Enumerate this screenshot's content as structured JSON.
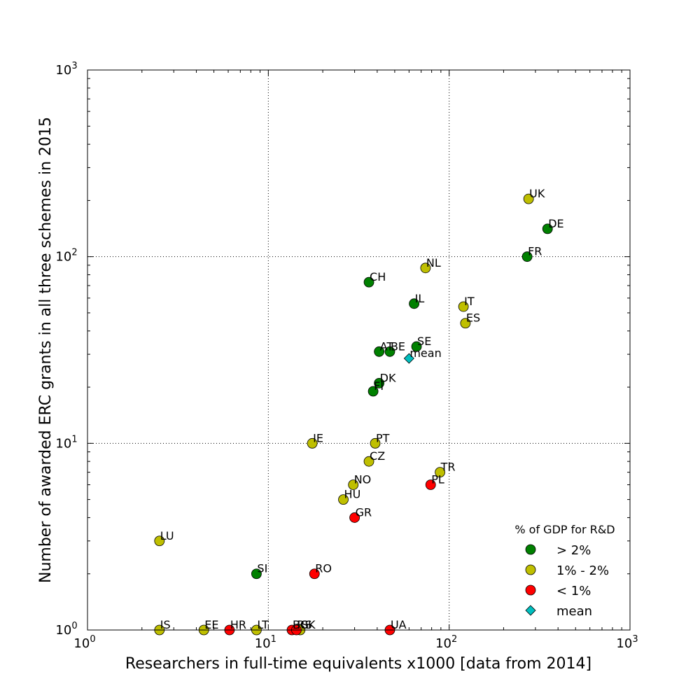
{
  "chart_data": {
    "type": "scatter",
    "xlabel": "Researchers in full-time equivalents x1000 [data from 2014]",
    "ylabel": "Number of awarded ERC grants in all three schemes in 2015",
    "x_scale": "log",
    "y_scale": "log",
    "xlim": [
      1,
      1000
    ],
    "ylim": [
      1,
      1000
    ],
    "x_ticks": [
      {
        "base": "10",
        "exp": "0"
      },
      {
        "base": "10",
        "exp": "1"
      },
      {
        "base": "10",
        "exp": "2"
      },
      {
        "base": "10",
        "exp": "3"
      }
    ],
    "y_ticks": [
      {
        "base": "10",
        "exp": "0"
      },
      {
        "base": "10",
        "exp": "1"
      },
      {
        "base": "10",
        "exp": "2"
      },
      {
        "base": "10",
        "exp": "3"
      }
    ],
    "grid": "major, dotted",
    "legend": {
      "title": "% of GDP for R&D",
      "placement": "bottom-right",
      "entries": [
        {
          "label": "> 2%",
          "marker": "circle",
          "color": "#008000"
        },
        {
          "label": "1% - 2%",
          "marker": "circle",
          "color": "#bfbf00"
        },
        {
          "label": "< 1%",
          "marker": "circle",
          "color": "#ff0000"
        },
        {
          "label": "mean",
          "marker": "diamond",
          "color": "#00bfbf"
        }
      ]
    },
    "series": [
      {
        "name": "> 2%",
        "color": "#008000",
        "marker": "circle",
        "points": [
          {
            "label": "DE",
            "x": 350,
            "y": 141
          },
          {
            "label": "FR",
            "x": 270,
            "y": 100
          },
          {
            "label": "CH",
            "x": 36,
            "y": 73
          },
          {
            "label": "IL",
            "x": 64,
            "y": 56
          },
          {
            "label": "SE",
            "x": 66,
            "y": 33
          },
          {
            "label": "AT",
            "x": 41,
            "y": 31
          },
          {
            "label": "BE",
            "x": 47,
            "y": 31
          },
          {
            "label": "DK",
            "x": 41,
            "y": 21
          },
          {
            "label": "FI",
            "x": 38,
            "y": 19
          },
          {
            "label": "SI",
            "x": 8.6,
            "y": 2
          }
        ]
      },
      {
        "name": "1% - 2%",
        "color": "#bfbf00",
        "marker": "circle",
        "points": [
          {
            "label": "UK",
            "x": 275,
            "y": 204
          },
          {
            "label": "NL",
            "x": 74,
            "y": 87
          },
          {
            "label": "IT",
            "x": 120,
            "y": 54
          },
          {
            "label": "ES",
            "x": 123,
            "y": 44
          },
          {
            "label": "IE",
            "x": 17.5,
            "y": 10
          },
          {
            "label": "PT",
            "x": 39,
            "y": 10
          },
          {
            "label": "CZ",
            "x": 36,
            "y": 8
          },
          {
            "label": "TR",
            "x": 89,
            "y": 7
          },
          {
            "label": "NO",
            "x": 29.5,
            "y": 6
          },
          {
            "label": "HU",
            "x": 26,
            "y": 5
          },
          {
            "label": "LU",
            "x": 2.5,
            "y": 3
          },
          {
            "label": "IS",
            "x": 2.5,
            "y": 1
          },
          {
            "label": "EE",
            "x": 4.4,
            "y": 1
          },
          {
            "label": "LT",
            "x": 8.6,
            "y": 1
          },
          {
            "label": "SK",
            "x": 15,
            "y": 1
          }
        ]
      },
      {
        "name": "< 1%",
        "color": "#ff0000",
        "marker": "circle",
        "points": [
          {
            "label": "PL",
            "x": 79,
            "y": 6
          },
          {
            "label": "GR",
            "x": 30,
            "y": 4
          },
          {
            "label": "RO",
            "x": 18,
            "y": 2
          },
          {
            "label": "HR",
            "x": 6.1,
            "y": 1
          },
          {
            "label": "BG",
            "x": 13.5,
            "y": 1
          },
          {
            "label": "RS",
            "x": 14.3,
            "y": 1
          },
          {
            "label": "UA",
            "x": 47,
            "y": 1
          }
        ]
      },
      {
        "name": "mean",
        "color": "#00bfbf",
        "marker": "diamond",
        "points": [
          {
            "label": "mean",
            "x": 60,
            "y": 28.5
          }
        ]
      }
    ]
  }
}
